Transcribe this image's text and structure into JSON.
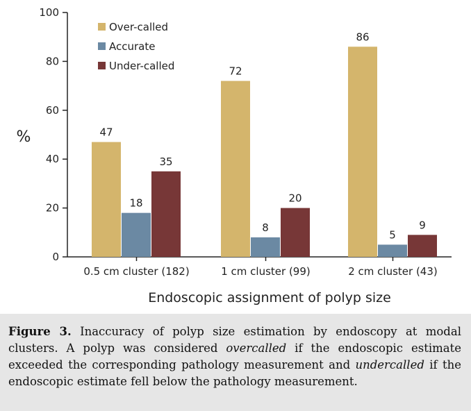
{
  "chart_data": {
    "type": "bar",
    "categories": [
      "0.5 cm cluster (182)",
      "1 cm cluster (99)",
      "2 cm cluster (43)"
    ],
    "series": [
      {
        "name": "Over-called",
        "values": [
          47,
          72,
          86
        ],
        "color": "#d4b56c"
      },
      {
        "name": "Accurate",
        "values": [
          18,
          8,
          5
        ],
        "color": "#6b89a3"
      },
      {
        "name": "Under-called",
        "values": [
          35,
          20,
          9
        ],
        "color": "#773737"
      }
    ],
    "title": "",
    "xlabel": "Endoscopic assignment of polyp size",
    "ylabel": "%",
    "ylim": [
      0,
      100
    ],
    "yticks": [
      0,
      20,
      40,
      60,
      80,
      100
    ],
    "grid": false,
    "legend_position": "top-left"
  },
  "caption": {
    "label": "Figure 3.",
    "text": " Inaccuracy of polyp size estimation by endoscopy at modal clusters. A polyp was considered ",
    "term1": "overcalled",
    "text2": " if the endoscopic estimate exceeded the corresponding pathology measurement and ",
    "term2": "undercalled",
    "text3": " if the endoscopic estimate fell below the pathology measurement."
  }
}
